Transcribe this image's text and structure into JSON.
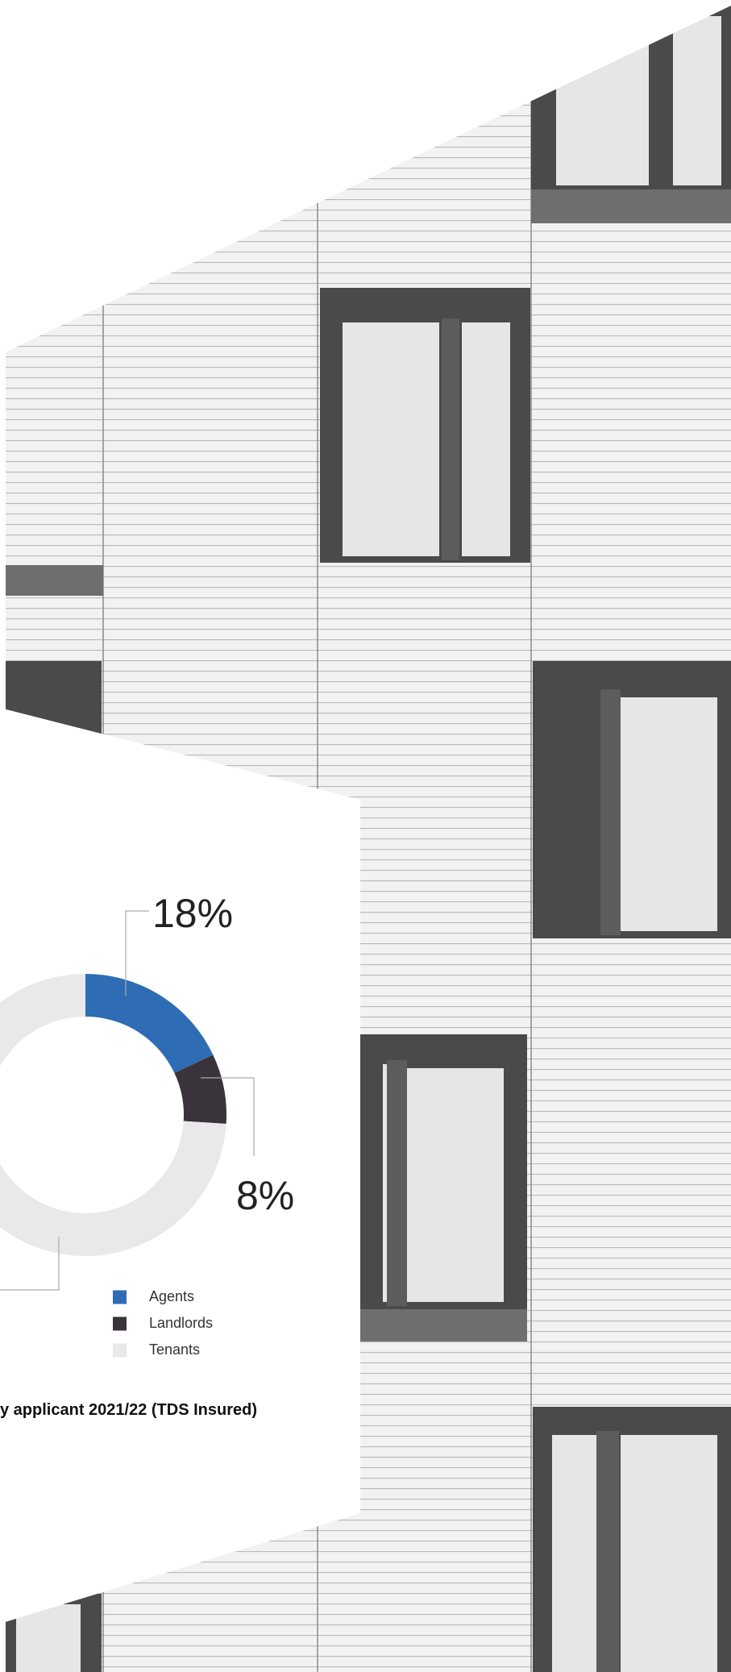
{
  "chart_data": {
    "type": "pie",
    "title": "y applicant 2021/22 (TDS Insured)",
    "categories": [
      "Agents",
      "Landlords",
      "Tenants"
    ],
    "values": [
      18,
      8,
      74
    ],
    "value_labels": [
      "18%",
      "8%",
      null
    ],
    "colors": [
      "#2e6db4",
      "#3a333b",
      "#e9e9e9"
    ],
    "donut": true,
    "legend": "bottom-right"
  }
}
